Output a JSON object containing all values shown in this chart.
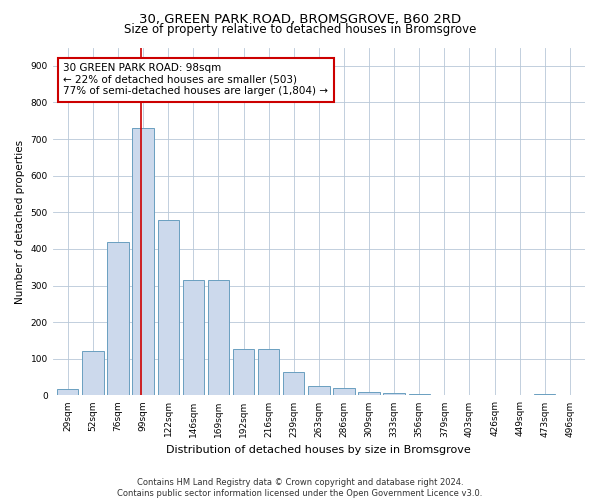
{
  "title": "30, GREEN PARK ROAD, BROMSGROVE, B60 2RD",
  "subtitle": "Size of property relative to detached houses in Bromsgrove",
  "xlabel": "Distribution of detached houses by size in Bromsgrove",
  "ylabel": "Number of detached properties",
  "bar_values": [
    18,
    120,
    418,
    730,
    478,
    315,
    315,
    128,
    128,
    65,
    25,
    20,
    10,
    8,
    5,
    0,
    0,
    0,
    0,
    5,
    0
  ],
  "bin_labels": [
    "29sqm",
    "52sqm",
    "76sqm",
    "99sqm",
    "122sqm",
    "146sqm",
    "169sqm",
    "192sqm",
    "216sqm",
    "239sqm",
    "263sqm",
    "286sqm",
    "309sqm",
    "333sqm",
    "356sqm",
    "379sqm",
    "403sqm",
    "426sqm",
    "449sqm",
    "473sqm",
    "496sqm"
  ],
  "bar_color_fill": "#ccd9ec",
  "bar_color_edge": "#6a9fc0",
  "vline_x_index": 3,
  "vline_color": "#cc0000",
  "annotation_text": "30 GREEN PARK ROAD: 98sqm\n← 22% of detached houses are smaller (503)\n77% of semi-detached houses are larger (1,804) →",
  "annotation_box_color": "#cc0000",
  "annotation_fontsize": 7.5,
  "ylim": [
    0,
    950
  ],
  "yticks": [
    0,
    100,
    200,
    300,
    400,
    500,
    600,
    700,
    800,
    900
  ],
  "bg_color": "#ffffff",
  "grid_color": "#b8c8d8",
  "footnote": "Contains HM Land Registry data © Crown copyright and database right 2024.\nContains public sector information licensed under the Open Government Licence v3.0.",
  "title_fontsize": 9.5,
  "subtitle_fontsize": 8.5,
  "xlabel_fontsize": 8,
  "ylabel_fontsize": 7.5,
  "tick_fontsize": 6.5,
  "footnote_fontsize": 6
}
